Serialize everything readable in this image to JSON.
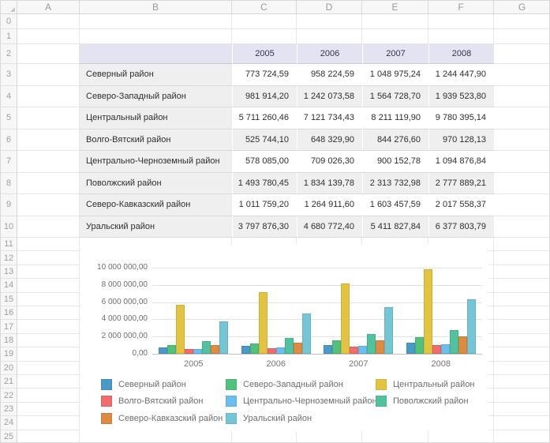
{
  "spreadsheet": {
    "column_headers": [
      "A",
      "B",
      "C",
      "D",
      "E",
      "F",
      "G"
    ],
    "row_numbers": [
      "0",
      "1",
      "2",
      "3",
      "4",
      "5",
      "6",
      "7",
      "8",
      "9",
      "10",
      "11",
      "12",
      "13",
      "14",
      "15",
      "16",
      "17",
      "18",
      "19",
      "20",
      "21",
      "22",
      "23",
      "24",
      "25"
    ]
  },
  "table": {
    "header_bg": "#E3E3F2",
    "band_color": "#EFEFEF",
    "year_headers": [
      "2005",
      "2006",
      "2007",
      "2008"
    ],
    "rows": [
      {
        "label": "Северный район",
        "values": [
          "773 724,59",
          "958 224,59",
          "1 048 975,24",
          "1 244 447,90"
        ]
      },
      {
        "label": "Северо-Западный район",
        "values": [
          "981 914,20",
          "1 242 073,58",
          "1 564 728,70",
          "1 939 523,80"
        ]
      },
      {
        "label": "Центральный район",
        "values": [
          "5 711 260,46",
          "7 121 734,43",
          "8 211 119,90",
          "9 780 395,14"
        ]
      },
      {
        "label": "Волго-Вятский район",
        "values": [
          "525 744,10",
          "648 329,90",
          "844 276,60",
          "970 128,13"
        ]
      },
      {
        "label": "Центрально-Черноземный район",
        "values": [
          "578 085,00",
          "709 026,30",
          "900 152,78",
          "1 094 876,84"
        ]
      },
      {
        "label": "Поволжский район",
        "values": [
          "1 493 780,45",
          "1 834 139,78",
          "2 313 732,98",
          "2 777 889,21"
        ]
      },
      {
        "label": "Северо-Кавказский район",
        "values": [
          "1 011 759,20",
          "1 264 911,60",
          "1 603 457,59",
          "2 017 558,37"
        ]
      },
      {
        "label": "Уральский район",
        "values": [
          "3 797 876,30",
          "4 680 772,40",
          "5 411 827,84",
          "6 377 803,79"
        ]
      }
    ]
  },
  "chart_data": {
    "type": "bar",
    "categories": [
      "2005",
      "2006",
      "2007",
      "2008"
    ],
    "series": [
      {
        "name": "Северный район",
        "color": "#4A9AC8",
        "values": [
          773724.59,
          958224.59,
          1048975.24,
          1244447.9
        ]
      },
      {
        "name": "Северо-Западный район",
        "color": "#50C27C",
        "values": [
          981914.2,
          1242073.58,
          1564728.7,
          1939523.8
        ]
      },
      {
        "name": "Центральный район",
        "color": "#E2C440",
        "values": [
          5711260.46,
          7121734.43,
          8211119.9,
          9780395.14
        ]
      },
      {
        "name": "Волго-Вятский район",
        "color": "#F16C6C",
        "values": [
          525744.1,
          648329.9,
          844276.6,
          970128.13
        ]
      },
      {
        "name": "Центрально-Черноземный район",
        "color": "#6CBEEF",
        "values": [
          578085.0,
          709026.3,
          900152.78,
          1094876.84
        ]
      },
      {
        "name": "Поволжский район",
        "color": "#50C29E",
        "values": [
          1493780.45,
          1834139.78,
          2313732.98,
          2777889.21
        ]
      },
      {
        "name": "Северо-Кавказский район",
        "color": "#DC8B40",
        "values": [
          1011759.2,
          1264911.6,
          1603457.59,
          2017558.37
        ]
      },
      {
        "name": "Уральский район",
        "color": "#74C6D4",
        "values": [
          3797876.3,
          4680772.4,
          5411827.84,
          6377803.79
        ]
      }
    ],
    "y_ticks": [
      "10 000 000,00",
      "8 000 000,00",
      "6 000 000,00",
      "4 000 000,00",
      "2 000 000,00",
      "0,00"
    ],
    "ylim": [
      0,
      10000000
    ],
    "grid": true,
    "legend_position": "bottom"
  }
}
